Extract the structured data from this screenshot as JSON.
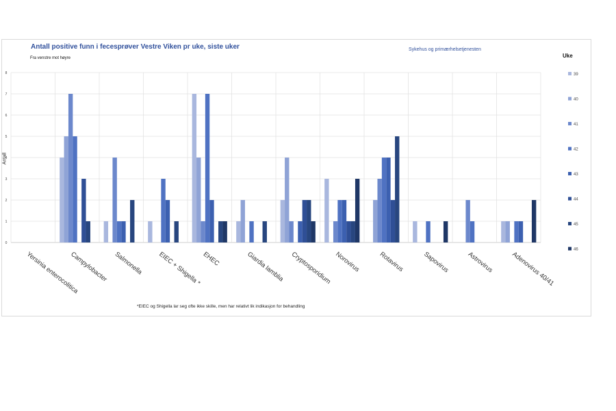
{
  "chart_data": {
    "type": "bar",
    "title": "Antall positive funn i fecesprøver Vestre Viken pr uke, siste uker",
    "subtitle_left": "Fra venstre mot høyre",
    "subtitle_right": "Sykehus og primærhelsetjenesten",
    "ylabel": "Antall",
    "ylim": [
      0,
      8
    ],
    "yticks": [
      "0",
      "1",
      "2",
      "3",
      "4",
      "5",
      "6",
      "7",
      "8"
    ],
    "grid": true,
    "legend_title": "Uke",
    "legend_position": "right",
    "footnote": "*EIEC og Shigella lar seg ofte ikke skille, men har relativt lik indikasjon for behandling",
    "categories": [
      "Yersinia enterocolitica",
      "Campylobacter",
      "Salmonella",
      "EIEC + Shigella *",
      "EHEC",
      "Giardia lamblia",
      "Cryptosporidium",
      "Norovirus",
      "Rotavirus",
      "Sapovirus",
      "Astrovirus",
      "Adenovirus 40/41"
    ],
    "series": [
      {
        "name": "39",
        "color": "#a9b7de",
        "values": [
          0,
          4,
          1,
          1,
          7,
          1,
          2,
          3,
          0,
          1,
          0,
          1
        ]
      },
      {
        "name": "40",
        "color": "#8fa3d6",
        "values": [
          0,
          5,
          0,
          0,
          4,
          2,
          4,
          0,
          2,
          0,
          0,
          1
        ]
      },
      {
        "name": "41",
        "color": "#6c88cc",
        "values": [
          0,
          7,
          4,
          0,
          1,
          0,
          1,
          1,
          3,
          0,
          2,
          0
        ]
      },
      {
        "name": "42",
        "color": "#4f72c2",
        "values": [
          0,
          5,
          1,
          3,
          7,
          1,
          0,
          2,
          4,
          1,
          1,
          1
        ]
      },
      {
        "name": "43",
        "color": "#3c60b0",
        "values": [
          0,
          0,
          1,
          2,
          2,
          0,
          1,
          2,
          4,
          0,
          0,
          1
        ]
      },
      {
        "name": "44",
        "color": "#2f4f96",
        "values": [
          0,
          3,
          0,
          0,
          0,
          0,
          2,
          1,
          2,
          0,
          0,
          0
        ]
      },
      {
        "name": "45",
        "color": "#28467f",
        "values": [
          0,
          1,
          2,
          1,
          1,
          1,
          2,
          1,
          5,
          0,
          0,
          0
        ]
      },
      {
        "name": "46",
        "color": "#1f3766",
        "values": [
          0,
          0,
          0,
          0,
          1,
          0,
          1,
          3,
          0,
          1,
          0,
          2
        ]
      }
    ]
  }
}
